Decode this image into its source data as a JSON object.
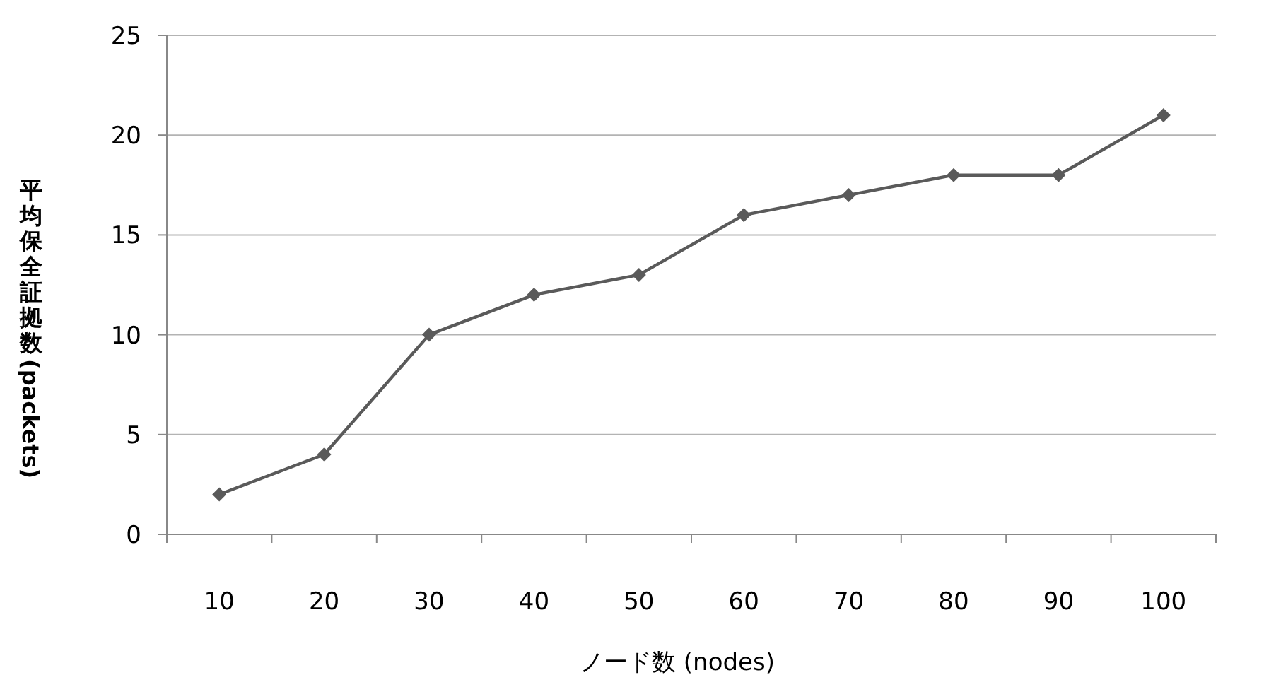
{
  "chart_data": {
    "type": "line",
    "xlabel": "ノード数 (nodes)",
    "ylabel": "平均保全証拠数 (packets)",
    "categories": [
      "10",
      "20",
      "30",
      "40",
      "50",
      "60",
      "70",
      "80",
      "90",
      "100"
    ],
    "series": [
      {
        "color": "#5a5a5a",
        "values": [
          2,
          4,
          10,
          12,
          13,
          16,
          17,
          18,
          18,
          21
        ]
      }
    ],
    "ylim": [
      0,
      25
    ],
    "yticks": [
      0,
      5,
      10,
      15,
      20,
      25
    ],
    "grid": "y",
    "marker": "diamond",
    "line_style": "solid"
  }
}
